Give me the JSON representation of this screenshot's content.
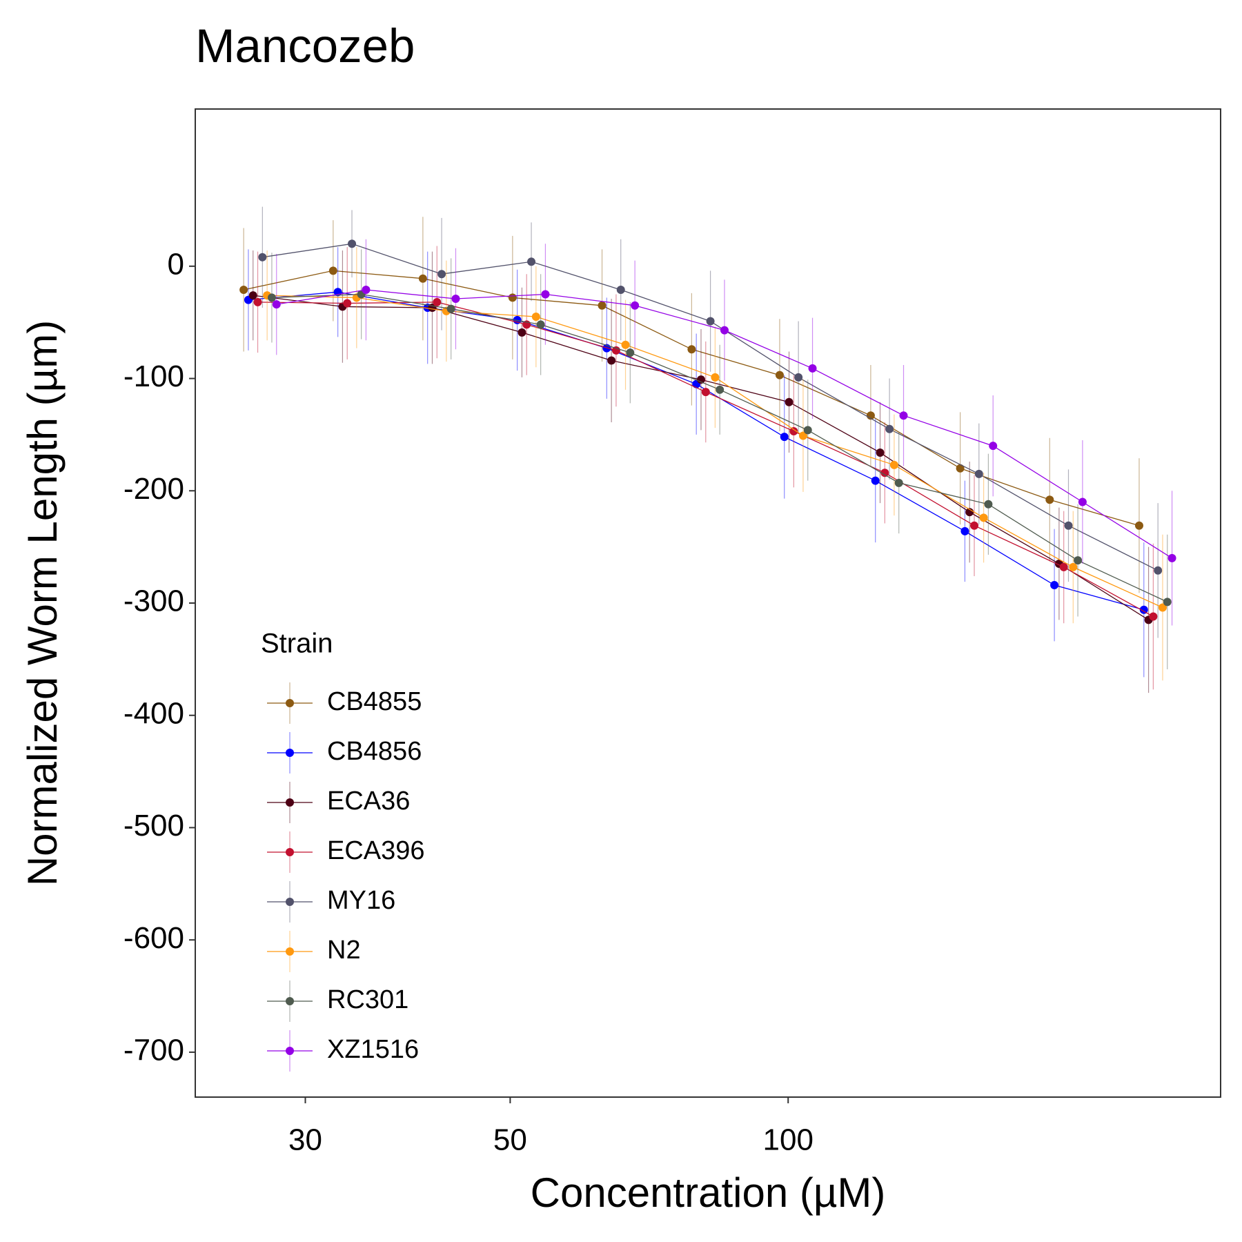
{
  "chart_data": {
    "type": "line",
    "title": "Mancozeb",
    "x_label": "Concentration (µM)",
    "y_label": "Normalized Worm Length (µm)",
    "x": [
      26.8,
      33.5,
      41.9,
      52.4,
      65.5,
      81.9,
      102,
      128,
      160,
      200,
      250
    ],
    "xlim": [
      22.8,
      294
    ],
    "xticks": [
      30,
      50,
      100
    ],
    "x_scale": "log",
    "ylim": [
      -740,
      140
    ],
    "yticks": [
      0,
      -100,
      -200,
      -300,
      -400,
      -500,
      -600,
      -700
    ],
    "grid": false,
    "legend_title": "Strain",
    "legend_position": "bottom-left",
    "series": [
      {
        "name": "CB4855",
        "color": "#8c5a12",
        "values": [
          -21,
          -4,
          -11,
          -28,
          -35,
          -74,
          -97,
          -133,
          -180,
          -208,
          -231
        ],
        "errors": [
          55,
          45,
          55,
          55,
          50,
          50,
          50,
          45,
          50,
          55,
          60
        ]
      },
      {
        "name": "CB4856",
        "color": "#0000ff",
        "values": [
          -30,
          -23,
          -37,
          -48,
          -73,
          -105,
          -152,
          -191,
          -236,
          -284,
          -306
        ],
        "errors": [
          45,
          40,
          50,
          45,
          45,
          45,
          55,
          55,
          45,
          50,
          60
        ]
      },
      {
        "name": "ECA36",
        "color": "#4d0014",
        "values": [
          -26,
          -36,
          -37,
          -59,
          -84,
          -101,
          -121,
          -166,
          -219,
          -265,
          -315
        ],
        "errors": [
          40,
          50,
          50,
          40,
          55,
          45,
          45,
          45,
          45,
          50,
          65
        ]
      },
      {
        "name": "ECA396",
        "color": "#c2102f",
        "values": [
          -32,
          -33,
          -32,
          -52,
          -75,
          -112,
          -147,
          -184,
          -231,
          -268,
          -312
        ],
        "errors": [
          45,
          50,
          50,
          45,
          50,
          45,
          50,
          45,
          45,
          50,
          65
        ]
      },
      {
        "name": "MY16",
        "color": "#52526b",
        "values": [
          8,
          20,
          -7,
          4,
          -21,
          -49,
          -99,
          -145,
          -185,
          -231,
          -271
        ],
        "errors": [
          45,
          30,
          50,
          35,
          45,
          45,
          50,
          45,
          45,
          50,
          60
        ]
      },
      {
        "name": "N2",
        "color": "#ff9910",
        "values": [
          -26,
          -28,
          -40,
          -45,
          -70,
          -99,
          -151,
          -177,
          -224,
          -268,
          -304
        ],
        "errors": [
          40,
          45,
          45,
          45,
          40,
          45,
          50,
          45,
          40,
          50,
          65
        ]
      },
      {
        "name": "RC301",
        "color": "#4f5b4f",
        "values": [
          -28,
          -25,
          -38,
          -52,
          -77,
          -110,
          -146,
          -193,
          -212,
          -262,
          -299
        ],
        "errors": [
          40,
          40,
          45,
          45,
          45,
          40,
          45,
          45,
          45,
          50,
          60
        ]
      },
      {
        "name": "XZ1516",
        "color": "#9400e6",
        "values": [
          -34,
          -21,
          -29,
          -25,
          -35,
          -57,
          -91,
          -133,
          -160,
          -210,
          -260
        ],
        "errors": [
          45,
          45,
          45,
          45,
          40,
          45,
          45,
          45,
          45,
          55,
          60
        ]
      }
    ]
  }
}
